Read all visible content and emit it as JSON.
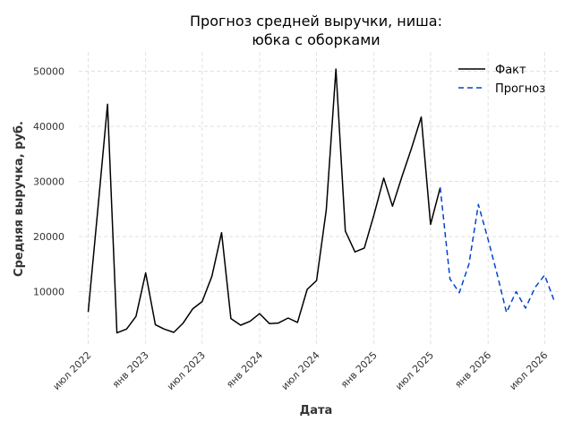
{
  "chart_data": {
    "type": "line",
    "title_lines": [
      "Прогноз средней выручки, ниша:",
      "юбка с оборками"
    ],
    "xlabel": "Дата",
    "ylabel": "Средняя выручка, руб.",
    "ylim": [
      0,
      53500
    ],
    "xlim": [
      "2022-06-01",
      "2026-08-15"
    ],
    "grid": true,
    "legend_position": "top-right",
    "x_ticks": [
      {
        "date": "2022-07-01",
        "label": "июл 2022"
      },
      {
        "date": "2023-01-01",
        "label": "янв 2023"
      },
      {
        "date": "2023-07-01",
        "label": "июл 2023"
      },
      {
        "date": "2024-01-01",
        "label": "янв 2024"
      },
      {
        "date": "2024-07-01",
        "label": "июл 2024"
      },
      {
        "date": "2025-01-01",
        "label": "янв 2025"
      },
      {
        "date": "2025-07-01",
        "label": "июл 2025"
      },
      {
        "date": "2026-01-01",
        "label": "янв 2026"
      },
      {
        "date": "2026-07-01",
        "label": "июл 2026"
      }
    ],
    "y_ticks": [
      {
        "value": 10000,
        "label": "10000"
      },
      {
        "value": 20000,
        "label": "20000"
      },
      {
        "value": 30000,
        "label": "30000"
      },
      {
        "value": 40000,
        "label": "40000"
      },
      {
        "value": 50000,
        "label": "50000"
      }
    ],
    "series": [
      {
        "name": "Факт",
        "color": "#000000",
        "style": "solid",
        "points": [
          {
            "x": "2022-07-01",
            "y": 6300
          },
          {
            "x": "2022-08-01",
            "y": 25000
          },
          {
            "x": "2022-09-01",
            "y": 44000
          },
          {
            "x": "2022-10-01",
            "y": 2500
          },
          {
            "x": "2022-11-01",
            "y": 3200
          },
          {
            "x": "2022-12-01",
            "y": 5500
          },
          {
            "x": "2023-01-01",
            "y": 13400
          },
          {
            "x": "2023-02-01",
            "y": 4000
          },
          {
            "x": "2023-03-01",
            "y": 3200
          },
          {
            "x": "2023-04-01",
            "y": 2600
          },
          {
            "x": "2023-05-01",
            "y": 4300
          },
          {
            "x": "2023-06-01",
            "y": 6900
          },
          {
            "x": "2023-07-01",
            "y": 8200
          },
          {
            "x": "2023-08-01",
            "y": 12800
          },
          {
            "x": "2023-09-01",
            "y": 20700
          },
          {
            "x": "2023-10-01",
            "y": 5100
          },
          {
            "x": "2023-11-01",
            "y": 3900
          },
          {
            "x": "2023-12-01",
            "y": 4600
          },
          {
            "x": "2024-01-01",
            "y": 6000
          },
          {
            "x": "2024-02-01",
            "y": 4200
          },
          {
            "x": "2024-03-01",
            "y": 4300
          },
          {
            "x": "2024-04-01",
            "y": 5200
          },
          {
            "x": "2024-05-01",
            "y": 4400
          },
          {
            "x": "2024-06-01",
            "y": 10400
          },
          {
            "x": "2024-07-01",
            "y": 12000
          },
          {
            "x": "2024-08-01",
            "y": 24800
          },
          {
            "x": "2024-09-01",
            "y": 50400
          },
          {
            "x": "2024-10-01",
            "y": 21000
          },
          {
            "x": "2024-11-01",
            "y": 17200
          },
          {
            "x": "2024-12-01",
            "y": 17900
          },
          {
            "x": "2025-01-01",
            "y": 24000
          },
          {
            "x": "2025-02-01",
            "y": 30600
          },
          {
            "x": "2025-03-01",
            "y": 25500
          },
          {
            "x": "2025-04-01",
            "y": 31000
          },
          {
            "x": "2025-05-01",
            "y": 36000
          },
          {
            "x": "2025-06-01",
            "y": 41700
          },
          {
            "x": "2025-07-01",
            "y": 22200
          },
          {
            "x": "2025-08-01",
            "y": 28900
          }
        ]
      },
      {
        "name": "Прогноз",
        "color": "#0044cc",
        "style": "dashed",
        "points": [
          {
            "x": "2025-08-01",
            "y": 28900
          },
          {
            "x": "2025-09-01",
            "y": 12300
          },
          {
            "x": "2025-10-01",
            "y": 9800
          },
          {
            "x": "2025-11-01",
            "y": 15000
          },
          {
            "x": "2025-12-01",
            "y": 25800
          },
          {
            "x": "2026-01-01",
            "y": 19500
          },
          {
            "x": "2026-02-01",
            "y": 12700
          },
          {
            "x": "2026-03-01",
            "y": 6200
          },
          {
            "x": "2026-04-01",
            "y": 10000
          },
          {
            "x": "2026-05-01",
            "y": 7000
          },
          {
            "x": "2026-06-01",
            "y": 10800
          },
          {
            "x": "2026-07-01",
            "y": 13000
          },
          {
            "x": "2026-08-01",
            "y": 8300
          }
        ]
      }
    ]
  }
}
